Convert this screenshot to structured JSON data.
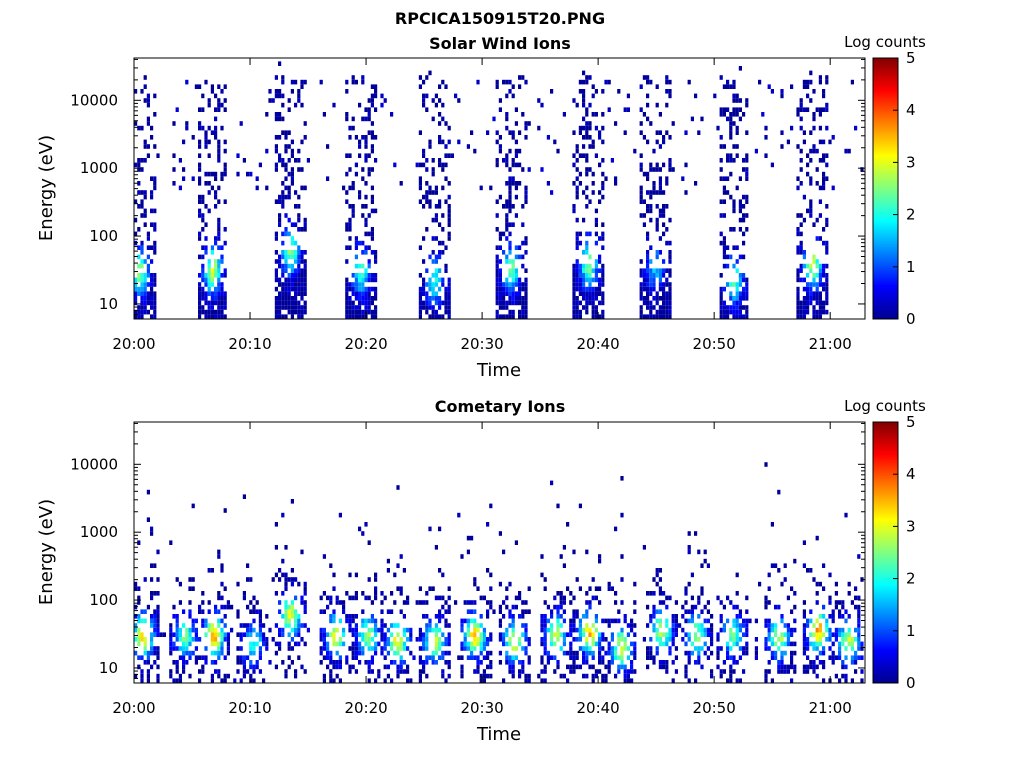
{
  "figure_title": "RPCICA150915T20.PNG",
  "colors": {
    "jet": [
      "#00008f",
      "#0000ff",
      "#0080ff",
      "#00ffff",
      "#80ff80",
      "#ffff00",
      "#ff8000",
      "#ff0000",
      "#800000"
    ],
    "axes": "#000000",
    "background": "#ffffff"
  },
  "chart_data": [
    {
      "type": "heatmap",
      "title": "Solar Wind Ions",
      "xlabel": "Time",
      "ylabel": "Energy (eV)",
      "x_scale": "time",
      "y_scale": "log",
      "xlim": [
        "20:00",
        "21:03"
      ],
      "ylim": [
        6,
        42000
      ],
      "x_ticks": [
        "20:00",
        "20:10",
        "20:20",
        "20:30",
        "20:40",
        "20:50",
        "21:00"
      ],
      "y_ticks": [
        "10",
        "100",
        "1000",
        "10000"
      ],
      "colorbar": {
        "label": "Log counts",
        "range": [
          0,
          5
        ],
        "ticks": [
          "0",
          "1",
          "2",
          "3",
          "4",
          "5"
        ]
      },
      "grid": false,
      "bursts": [
        {
          "center_time": "20:00.5",
          "peak_energy_eV": 30,
          "peak_log_counts": 2.5
        },
        {
          "center_time": "20:06.8",
          "peak_energy_eV": 32,
          "peak_log_counts": 2.8
        },
        {
          "center_time": "20:13.5",
          "peak_energy_eV": 60,
          "peak_log_counts": 2.5
        },
        {
          "center_time": "20:19.6",
          "peak_energy_eV": 30,
          "peak_log_counts": 2.2
        },
        {
          "center_time": "20:25.9",
          "peak_energy_eV": 22,
          "peak_log_counts": 2.0
        },
        {
          "center_time": "20:32.5",
          "peak_energy_eV": 33,
          "peak_log_counts": 2.3
        },
        {
          "center_time": "20:39.2",
          "peak_energy_eV": 40,
          "peak_log_counts": 2.6
        },
        {
          "center_time": "20:44.9",
          "peak_energy_eV": 35,
          "peak_log_counts": 1.6
        },
        {
          "center_time": "20:51.7",
          "peak_energy_eV": 22,
          "peak_log_counts": 2.2
        },
        {
          "center_time": "20:58.5",
          "peak_energy_eV": 38,
          "peak_log_counts": 2.8
        }
      ]
    },
    {
      "type": "heatmap",
      "title": "Cometary Ions",
      "xlabel": "Time",
      "ylabel": "Energy (eV)",
      "x_scale": "time",
      "y_scale": "log",
      "xlim": [
        "20:00",
        "21:03"
      ],
      "ylim": [
        6,
        42000
      ],
      "x_ticks": [
        "20:00",
        "20:10",
        "20:20",
        "20:30",
        "20:40",
        "20:50",
        "21:00"
      ],
      "y_ticks": [
        "10",
        "100",
        "1000",
        "10000"
      ],
      "colorbar": {
        "label": "Log counts",
        "range": [
          0,
          5
        ],
        "ticks": [
          "0",
          "1",
          "2",
          "3",
          "4",
          "5"
        ]
      },
      "grid": false,
      "bursts": [
        {
          "center_time": "20:00.8",
          "peak_energy_eV": 30,
          "peak_log_counts": 3.3
        },
        {
          "center_time": "20:04.4",
          "peak_energy_eV": 30,
          "peak_log_counts": 2.4
        },
        {
          "center_time": "20:06.9",
          "peak_energy_eV": 30,
          "peak_log_counts": 3.5
        },
        {
          "center_time": "20:10.3",
          "peak_energy_eV": 22,
          "peak_log_counts": 2.0
        },
        {
          "center_time": "20:13.5",
          "peak_energy_eV": 60,
          "peak_log_counts": 3.0
        },
        {
          "center_time": "20:17.4",
          "peak_energy_eV": 30,
          "peak_log_counts": 3.0
        },
        {
          "center_time": "20:20.2",
          "peak_energy_eV": 30,
          "peak_log_counts": 2.6
        },
        {
          "center_time": "20:22.7",
          "peak_energy_eV": 25,
          "peak_log_counts": 3.2
        },
        {
          "center_time": "20:25.9",
          "peak_energy_eV": 25,
          "peak_log_counts": 2.8
        },
        {
          "center_time": "20:29.4",
          "peak_energy_eV": 30,
          "peak_log_counts": 3.4
        },
        {
          "center_time": "20:32.8",
          "peak_energy_eV": 25,
          "peak_log_counts": 3.0
        },
        {
          "center_time": "20:36.4",
          "peak_energy_eV": 30,
          "peak_log_counts": 2.8
        },
        {
          "center_time": "20:39.3",
          "peak_energy_eV": 32,
          "peak_log_counts": 3.4
        },
        {
          "center_time": "20:42.0",
          "peak_energy_eV": 20,
          "peak_log_counts": 3.0
        },
        {
          "center_time": "20:45.5",
          "peak_energy_eV": 35,
          "peak_log_counts": 2.8
        },
        {
          "center_time": "20:48.5",
          "peak_energy_eV": 30,
          "peak_log_counts": 2.6
        },
        {
          "center_time": "20:51.6",
          "peak_energy_eV": 30,
          "peak_log_counts": 2.4
        },
        {
          "center_time": "20:55.6",
          "peak_energy_eV": 28,
          "peak_log_counts": 2.8
        },
        {
          "center_time": "20:59.0",
          "peak_energy_eV": 35,
          "peak_log_counts": 3.6
        },
        {
          "center_time": "21:01.6",
          "peak_energy_eV": 25,
          "peak_log_counts": 2.8
        }
      ]
    }
  ]
}
